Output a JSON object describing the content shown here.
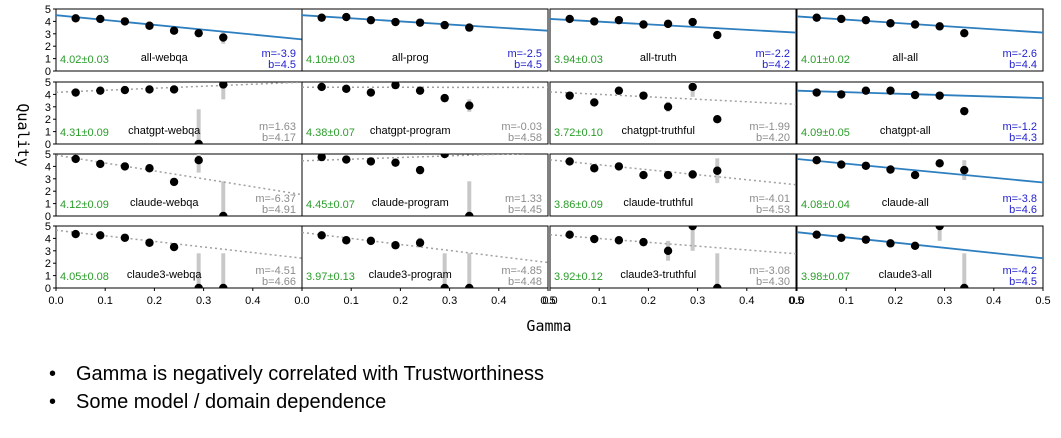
{
  "chart_data": {
    "type": "scatter",
    "ylabel": "Quality",
    "xlabel": "Gamma",
    "xlim": [
      0.0,
      0.5
    ],
    "ylim": [
      0,
      5
    ],
    "xticks": [
      "0.0",
      "0.1",
      "0.2",
      "0.3",
      "0.4",
      "0.5"
    ],
    "xticks_first_col": [
      "0.0",
      "0.1",
      "0.2",
      "0.3",
      "0.4"
    ],
    "yticks": [
      "0",
      "1",
      "2",
      "3",
      "4",
      "5"
    ],
    "colors": {
      "fit_significant": "#2e7fbf",
      "fit_insignificant": "#a0a0a0",
      "mean_label": "#2a9d2a",
      "coef_significant": "#1f1fd1",
      "coef_insignificant": "#8c8c8c",
      "point": "#000000",
      "errorbar": "#c8c8c8"
    },
    "panels": [
      {
        "name": "all-webqa",
        "mean": "4.02±0.03",
        "m": "m=-3.9",
        "b": "b=4.5",
        "significant": true,
        "slope": -3.9,
        "intercept": 4.5,
        "points": [
          [
            0.04,
            4.25,
            0.15
          ],
          [
            0.09,
            4.2,
            0.15
          ],
          [
            0.14,
            4.0,
            0.2
          ],
          [
            0.19,
            3.65,
            0.2
          ],
          [
            0.24,
            3.25,
            0.2
          ],
          [
            0.29,
            3.05,
            0.2
          ],
          [
            0.34,
            2.7,
            0.5
          ]
        ]
      },
      {
        "name": "all-prog",
        "mean": "4.10±0.03",
        "m": "m=-2.5",
        "b": "b=4.5",
        "significant": true,
        "slope": -2.5,
        "intercept": 4.5,
        "points": [
          [
            0.04,
            4.3,
            0.15
          ],
          [
            0.09,
            4.35,
            0.15
          ],
          [
            0.14,
            4.1,
            0.2
          ],
          [
            0.19,
            3.95,
            0.2
          ],
          [
            0.24,
            3.9,
            0.2
          ],
          [
            0.29,
            3.7,
            0.25
          ],
          [
            0.34,
            3.5,
            0.3
          ]
        ]
      },
      {
        "name": "all-truth",
        "mean": "3.94±0.03",
        "m": "m=-2.2",
        "b": "b=4.2",
        "significant": true,
        "slope": -2.2,
        "intercept": 4.2,
        "points": [
          [
            0.04,
            4.2,
            0.15
          ],
          [
            0.09,
            4.0,
            0.15
          ],
          [
            0.14,
            4.1,
            0.2
          ],
          [
            0.19,
            3.75,
            0.2
          ],
          [
            0.24,
            3.8,
            0.2
          ],
          [
            0.29,
            3.95,
            0.3
          ],
          [
            0.34,
            2.9,
            0.3
          ]
        ]
      },
      {
        "name": "all-all",
        "mean": "4.01±0.02",
        "m": "m=-2.6",
        "b": "b=4.4",
        "significant": true,
        "slope": -2.6,
        "intercept": 4.4,
        "points": [
          [
            0.04,
            4.3,
            0.1
          ],
          [
            0.09,
            4.2,
            0.1
          ],
          [
            0.14,
            4.1,
            0.15
          ],
          [
            0.19,
            3.85,
            0.15
          ],
          [
            0.24,
            3.75,
            0.15
          ],
          [
            0.29,
            3.6,
            0.2
          ],
          [
            0.34,
            3.05,
            0.2
          ]
        ]
      },
      {
        "name": "chatgpt-webqa",
        "mean": "4.31±0.09",
        "m": "m=1.63",
        "b": "b=4.17",
        "significant": false,
        "slope": 1.63,
        "intercept": 4.17,
        "points": [
          [
            0.04,
            4.15,
            0.2
          ],
          [
            0.09,
            4.3,
            0.2
          ],
          [
            0.14,
            4.35,
            0.2
          ],
          [
            0.19,
            4.4,
            0.2
          ],
          [
            0.24,
            4.4,
            0.2
          ],
          [
            0.29,
            0.0,
            2.8
          ],
          [
            0.34,
            4.8,
            1.2
          ]
        ]
      },
      {
        "name": "chatgpt-program",
        "mean": "4.38±0.07",
        "m": "m=-0.03",
        "b": "b=4.58",
        "significant": false,
        "slope": -0.03,
        "intercept": 4.58,
        "points": [
          [
            0.04,
            4.6,
            0.15
          ],
          [
            0.09,
            4.45,
            0.15
          ],
          [
            0.14,
            4.15,
            0.2
          ],
          [
            0.19,
            4.75,
            0.2
          ],
          [
            0.24,
            4.3,
            0.2
          ],
          [
            0.29,
            3.7,
            0.3
          ],
          [
            0.34,
            3.1,
            0.5
          ]
        ]
      },
      {
        "name": "chatgpt-truthful",
        "mean": "3.72±0.10",
        "m": "m=-1.99",
        "b": "b=4.20",
        "significant": false,
        "slope": -1.99,
        "intercept": 4.2,
        "points": [
          [
            0.04,
            3.9,
            0.2
          ],
          [
            0.09,
            3.35,
            0.25
          ],
          [
            0.14,
            4.3,
            0.2
          ],
          [
            0.19,
            3.9,
            0.25
          ],
          [
            0.24,
            3.0,
            0.4
          ],
          [
            0.29,
            4.6,
            0.8
          ],
          [
            0.34,
            2.0,
            0.2
          ]
        ]
      },
      {
        "name": "chatgpt-all",
        "mean": "4.09±0.05",
        "m": "m=-1.2",
        "b": "b=4.3",
        "significant": true,
        "slope": -1.2,
        "intercept": 4.3,
        "points": [
          [
            0.04,
            4.15,
            0.1
          ],
          [
            0.09,
            4.0,
            0.1
          ],
          [
            0.14,
            4.3,
            0.15
          ],
          [
            0.19,
            4.3,
            0.15
          ],
          [
            0.24,
            3.95,
            0.15
          ],
          [
            0.29,
            3.9,
            0.2
          ],
          [
            0.34,
            2.65,
            0.25
          ]
        ]
      },
      {
        "name": "claude-webqa",
        "mean": "4.12±0.09",
        "m": "m=-6.37",
        "b": "b=4.91",
        "significant": false,
        "slope": -6.37,
        "intercept": 4.91,
        "points": [
          [
            0.04,
            4.6,
            0.2
          ],
          [
            0.09,
            4.2,
            0.2
          ],
          [
            0.14,
            4.0,
            0.2
          ],
          [
            0.19,
            3.85,
            0.25
          ],
          [
            0.24,
            2.75,
            0.3
          ],
          [
            0.29,
            4.5,
            1.0
          ],
          [
            0.34,
            0.0,
            2.8
          ]
        ]
      },
      {
        "name": "claude-program",
        "mean": "4.45±0.07",
        "m": "m=1.33",
        "b": "b=4.45",
        "significant": false,
        "slope": 1.33,
        "intercept": 4.45,
        "points": [
          [
            0.04,
            4.75,
            0.15
          ],
          [
            0.09,
            4.55,
            0.15
          ],
          [
            0.14,
            4.4,
            0.2
          ],
          [
            0.19,
            4.3,
            0.2
          ],
          [
            0.24,
            3.7,
            0.25
          ],
          [
            0.29,
            5.0,
            0.3
          ],
          [
            0.34,
            0.0,
            2.8
          ]
        ]
      },
      {
        "name": "claude-truthful",
        "mean": "3.86±0.09",
        "m": "m=-4.01",
        "b": "b=4.53",
        "significant": false,
        "slope": -4.01,
        "intercept": 4.53,
        "points": [
          [
            0.04,
            4.4,
            0.2
          ],
          [
            0.09,
            3.85,
            0.2
          ],
          [
            0.14,
            4.0,
            0.2
          ],
          [
            0.19,
            3.3,
            0.25
          ],
          [
            0.24,
            3.3,
            0.3
          ],
          [
            0.29,
            3.35,
            0.35
          ],
          [
            0.34,
            3.65,
            1.0
          ]
        ]
      },
      {
        "name": "claude-all",
        "mean": "4.08±0.04",
        "m": "m=-3.8",
        "b": "b=4.6",
        "significant": true,
        "slope": -3.8,
        "intercept": 4.6,
        "points": [
          [
            0.04,
            4.5,
            0.1
          ],
          [
            0.09,
            4.15,
            0.1
          ],
          [
            0.14,
            4.05,
            0.15
          ],
          [
            0.19,
            3.75,
            0.15
          ],
          [
            0.24,
            3.3,
            0.2
          ],
          [
            0.29,
            4.25,
            0.2
          ],
          [
            0.34,
            3.7,
            0.8
          ]
        ]
      },
      {
        "name": "claude3-webqa",
        "mean": "4.05±0.08",
        "m": "m=-4.51",
        "b": "b=4.66",
        "significant": false,
        "slope": -4.51,
        "intercept": 4.66,
        "points": [
          [
            0.04,
            4.35,
            0.2
          ],
          [
            0.09,
            4.25,
            0.2
          ],
          [
            0.14,
            4.05,
            0.2
          ],
          [
            0.19,
            3.65,
            0.25
          ],
          [
            0.24,
            3.3,
            0.3
          ],
          [
            0.29,
            0.0,
            2.8
          ],
          [
            0.34,
            0.0,
            2.8
          ]
        ]
      },
      {
        "name": "claude3-program",
        "mean": "3.97±0.13",
        "m": "m=-4.85",
        "b": "b=4.48",
        "significant": false,
        "slope": -4.85,
        "intercept": 4.48,
        "points": [
          [
            0.04,
            4.25,
            0.2
          ],
          [
            0.09,
            3.85,
            0.2
          ],
          [
            0.14,
            3.8,
            0.25
          ],
          [
            0.19,
            3.45,
            0.3
          ],
          [
            0.24,
            3.65,
            0.4
          ],
          [
            0.29,
            0.0,
            2.8
          ],
          [
            0.34,
            0.0,
            2.8
          ]
        ]
      },
      {
        "name": "claude3-truthful",
        "mean": "3.92±0.12",
        "m": "m=-3.08",
        "b": "b=4.30",
        "significant": false,
        "slope": -3.08,
        "intercept": 4.3,
        "points": [
          [
            0.04,
            4.3,
            0.2
          ],
          [
            0.09,
            3.95,
            0.2
          ],
          [
            0.14,
            3.85,
            0.25
          ],
          [
            0.19,
            3.7,
            0.3
          ],
          [
            0.24,
            3.0,
            0.8
          ],
          [
            0.29,
            5.0,
            2.0
          ],
          [
            0.34,
            0.0,
            2.8
          ]
        ]
      },
      {
        "name": "claude3-all",
        "mean": "3.98±0.07",
        "m": "m=-4.2",
        "b": "b=4.5",
        "significant": true,
        "slope": -4.2,
        "intercept": 4.5,
        "points": [
          [
            0.04,
            4.3,
            0.1
          ],
          [
            0.09,
            4.05,
            0.1
          ],
          [
            0.14,
            3.9,
            0.15
          ],
          [
            0.19,
            3.6,
            0.15
          ],
          [
            0.24,
            3.4,
            0.2
          ],
          [
            0.29,
            5.0,
            1.2
          ],
          [
            0.34,
            0.0,
            2.8
          ]
        ]
      }
    ]
  },
  "bullets": [
    "Gamma is negatively correlated with Trustworthiness",
    "Some model / domain dependence"
  ]
}
